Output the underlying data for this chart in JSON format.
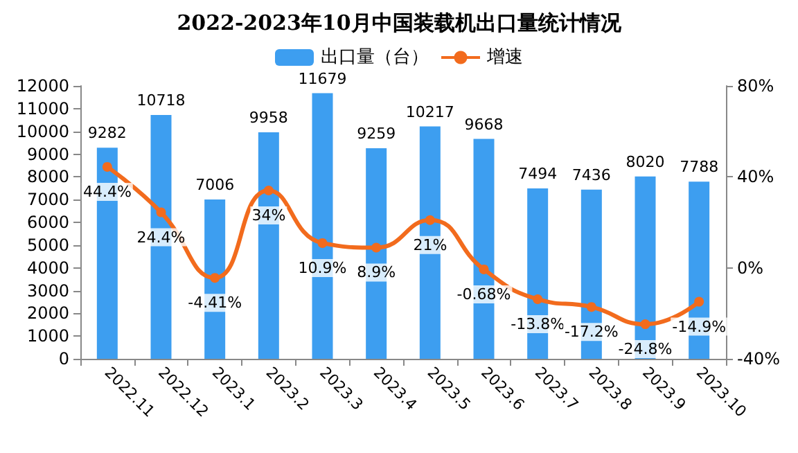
{
  "chart_data": {
    "type": "bar",
    "title": "2022-2023年10月中国装载机出口量统计情况",
    "categories": [
      "2022.11",
      "2022.12",
      "2023.1",
      "2023.2",
      "2023.3",
      "2023.4",
      "2023.5",
      "2023.6",
      "2023.7",
      "2023.8",
      "2023.9",
      "2023.10"
    ],
    "series": [
      {
        "name": "出口量（台）",
        "color": "#3d9ef0",
        "values": [
          9282,
          10718,
          7006,
          9958,
          11679,
          9259,
          10217,
          9668,
          7494,
          7436,
          8020,
          7788
        ],
        "value_labels": [
          "9282",
          "10718",
          "7006",
          "9958",
          "11679",
          "9259",
          "10217",
          "9668",
          "7494",
          "7436",
          "8020",
          "7788"
        ]
      },
      {
        "name": "增速",
        "type": "line",
        "axis": "y2",
        "color": "#f26b1d",
        "values": [
          44.4,
          24.4,
          -4.41,
          34,
          10.9,
          8.9,
          21,
          -0.68,
          -13.8,
          -17.2,
          -24.8,
          -14.9
        ],
        "value_labels": [
          "44.4%",
          "24.4%",
          "-4.41%",
          "34%",
          "10.9%",
          "8.9%",
          "21%",
          "-0.68%",
          "-13.8%",
          "-17.2%",
          "-24.8%",
          "-14.9%"
        ]
      }
    ],
    "ylim": [
      0,
      12000
    ],
    "yticks": [
      0,
      1000,
      2000,
      3000,
      4000,
      5000,
      6000,
      7000,
      8000,
      9000,
      10000,
      11000,
      12000
    ],
    "y2lim": [
      -40,
      80
    ],
    "y2ticks": [
      {
        "value": -40,
        "label": "-40%"
      },
      {
        "value": 0,
        "label": "0%"
      },
      {
        "value": 40,
        "label": "40%"
      },
      {
        "value": 80,
        "label": "80%"
      }
    ],
    "legend": "top",
    "marker": "circle",
    "grid": false
  }
}
